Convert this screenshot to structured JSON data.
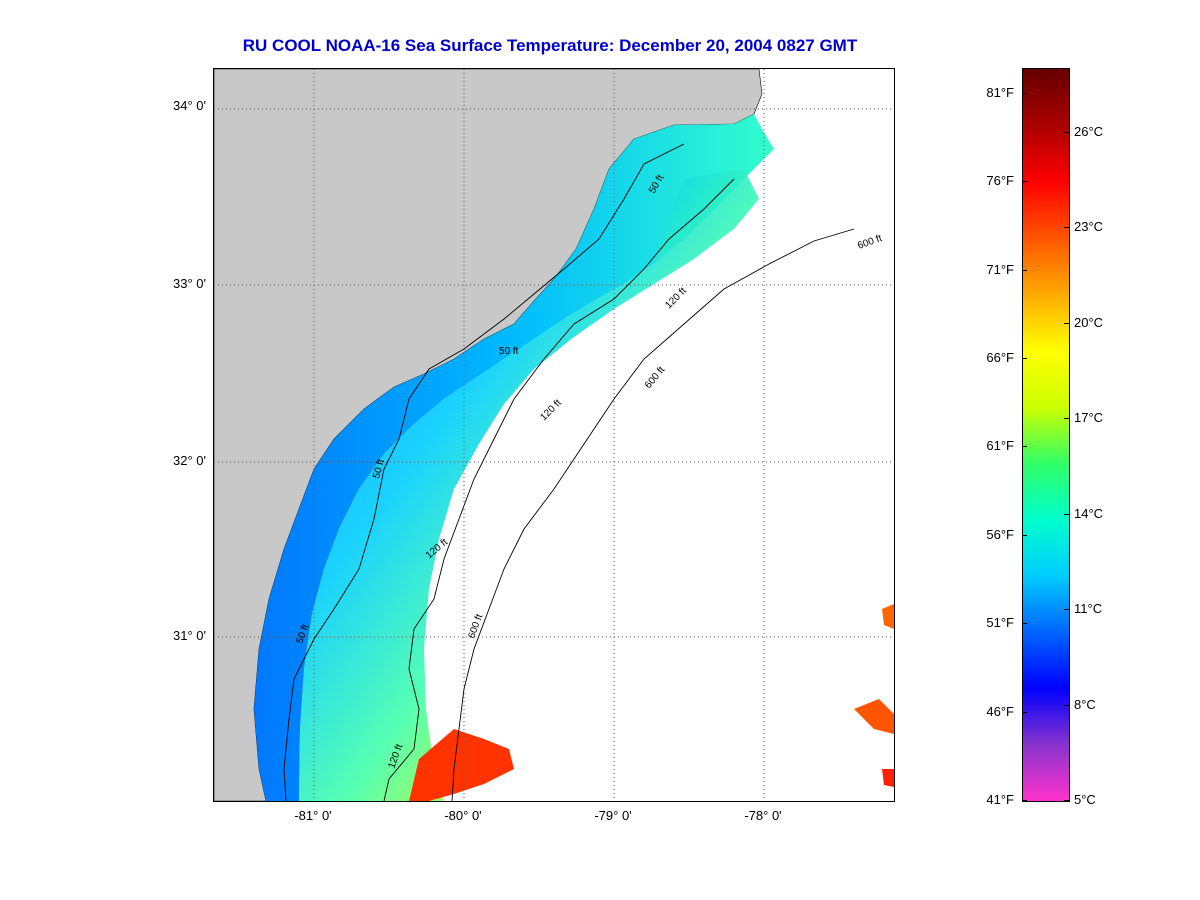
{
  "title": "RU COOL  NOAA-16  Sea Surface Temperature:  December 20, 2004 0827 GMT",
  "latitude_ticks": [
    {
      "label": "34° 0'",
      "value": 34.0
    },
    {
      "label": "33° 0'",
      "value": 33.0
    },
    {
      "label": "32° 0'",
      "value": 32.0
    },
    {
      "label": "31° 0'",
      "value": 31.0
    }
  ],
  "longitude_ticks": [
    {
      "label": "-81° 0'",
      "value": -81.0
    },
    {
      "label": "-80° 0'",
      "value": -80.0
    },
    {
      "label": "-79° 0'",
      "value": -79.0
    },
    {
      "label": "-78° 0'",
      "value": -78.0
    }
  ],
  "contours": [
    {
      "label": "50 ft"
    },
    {
      "label": "120 ft"
    },
    {
      "label": "600 ft"
    }
  ],
  "contour_labels_on_map": [
    "50 ft",
    "50 ft",
    "50 ft",
    "50 ft",
    "120 ft",
    "120 ft",
    "120 ft",
    "120 ft",
    "600 ft",
    "600 ft",
    "600 ft"
  ],
  "colorbar": {
    "fahrenheit_labels": [
      "81°F",
      "76°F",
      "71°F",
      "66°F",
      "61°F",
      "56°F",
      "51°F",
      "46°F",
      "41°F"
    ],
    "fahrenheit_values": [
      81,
      76,
      71,
      66,
      61,
      56,
      51,
      46,
      41
    ],
    "celsius_labels": [
      "26°C",
      "23°C",
      "20°C",
      "17°C",
      "14°C",
      "11°C",
      "8°C",
      "5°C"
    ],
    "celsius_values": [
      26,
      23,
      20,
      17,
      14,
      11,
      8,
      5
    ],
    "range_celsius": [
      5,
      28
    ],
    "colors": [
      "#ff33cc",
      "#8833cc",
      "#0000ff",
      "#0066ff",
      "#00ccff",
      "#00ffcc",
      "#33ff66",
      "#ccff00",
      "#ffff00",
      "#ffaa00",
      "#ff5500",
      "#ff0000",
      "#aa0000",
      "#660000"
    ]
  },
  "colors": {
    "land": "#c8c8c8",
    "ocean_no_data": "#ffffff",
    "title": "#0000cc",
    "grid": "#555555"
  }
}
